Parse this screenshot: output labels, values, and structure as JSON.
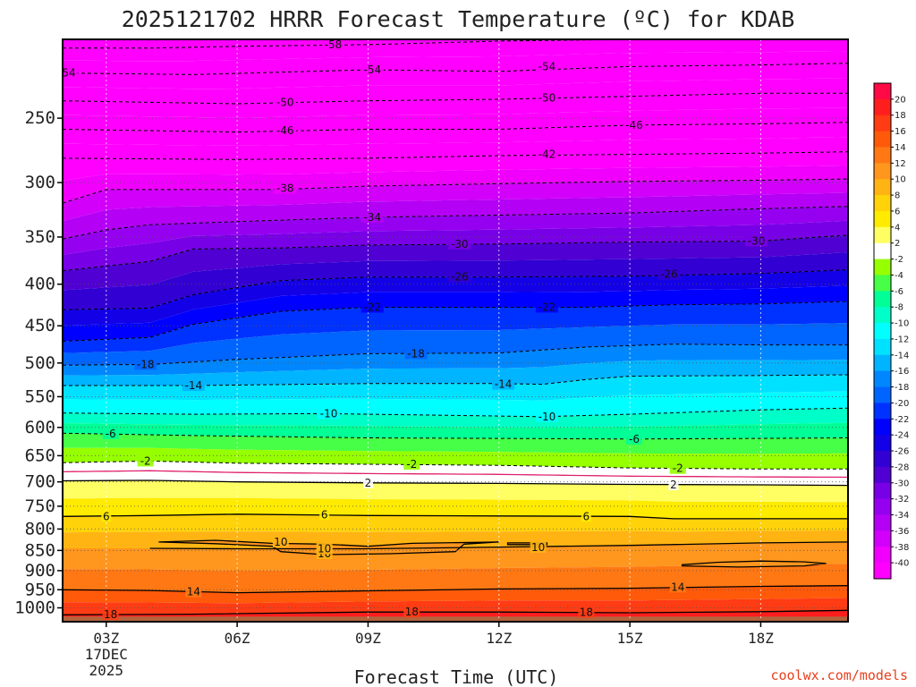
{
  "title": "2025121702 HRRR Forecast Temperature (ºC) for KDAB",
  "credit": "coolwx.com/models",
  "chart_data": {
    "type": "heatmap",
    "title": "2025121702 HRRR Forecast Temperature (ºC) for KDAB",
    "xlabel": "Forecast Time (UTC)",
    "ylabel": "",
    "x_range_hours_utc": [
      2,
      20
    ],
    "x_ticks": [
      {
        "hour": 3,
        "label": "03Z",
        "date_lines": [
          "17DEC",
          "2025"
        ]
      },
      {
        "hour": 6,
        "label": "06Z"
      },
      {
        "hour": 9,
        "label": "09Z"
      },
      {
        "hour": 12,
        "label": "12Z"
      },
      {
        "hour": 15,
        "label": "15Z"
      },
      {
        "hour": 18,
        "label": "18Z"
      }
    ],
    "y_axis": {
      "quantity": "pressure (hPa)",
      "scale": "log",
      "reversed": true,
      "range": [
        1040,
        200
      ]
    },
    "y_ticks": [
      250,
      300,
      350,
      400,
      450,
      500,
      550,
      600,
      650,
      700,
      750,
      800,
      850,
      900,
      950,
      1000
    ],
    "grid": true,
    "colorbar": {
      "ticks": [
        "20",
        "18",
        "16",
        "14",
        "12",
        "10",
        "8",
        "6",
        "4",
        "2",
        "-2",
        "-4",
        "-6",
        "-8",
        "-10",
        "-12",
        "-14",
        "-16",
        "-18",
        "-20",
        "-22",
        "-24",
        "-26",
        "-28",
        "-30",
        "-32",
        "-34",
        "-36",
        "-38",
        "-40"
      ],
      "colors": [
        "#ff0a46",
        "#ff1e1e",
        "#ff3c14",
        "#ff5a0a",
        "#ff7814",
        "#ff961e",
        "#ffb414",
        "#ffd20a",
        "#ffeb00",
        "#ffff64",
        "#ffffff",
        "#96ff00",
        "#46ff46",
        "#00ff96",
        "#00ffc8",
        "#00ffff",
        "#00e1ff",
        "#00b4ff",
        "#0087ff",
        "#0064ff",
        "#0032ff",
        "#0000ff",
        "#1400e6",
        "#3200d2",
        "#5000d2",
        "#7800e6",
        "#9600f0",
        "#b400f5",
        "#d200fa",
        "#f000fc",
        "#ff00ff"
      ],
      "position": "right"
    },
    "contour_interval_c": 4,
    "isotherms": [
      {
        "temp": -58,
        "points": [
          [
            2,
            205
          ],
          [
            4,
            205
          ],
          [
            6,
            204
          ],
          [
            9,
            203
          ],
          [
            12,
            201
          ],
          [
            15,
            200
          ],
          [
            20,
            200
          ]
        ]
      },
      {
        "temp": -54,
        "points": [
          [
            2,
            220
          ],
          [
            5,
            221
          ],
          [
            9,
            218
          ],
          [
            12,
            219
          ],
          [
            15,
            216
          ],
          [
            18,
            215
          ],
          [
            20,
            214
          ]
        ]
      },
      {
        "temp": -50,
        "points": [
          [
            2,
            238
          ],
          [
            6,
            240
          ],
          [
            9,
            238
          ],
          [
            12,
            237
          ],
          [
            15,
            235
          ],
          [
            18,
            233
          ],
          [
            20,
            233
          ]
        ]
      },
      {
        "temp": -46,
        "points": [
          [
            2,
            258
          ],
          [
            6,
            260
          ],
          [
            9,
            258
          ],
          [
            12,
            258
          ],
          [
            15,
            255
          ],
          [
            18,
            254
          ],
          [
            20,
            253
          ]
        ]
      },
      {
        "temp": -42,
        "points": [
          [
            2,
            280
          ],
          [
            6,
            281
          ],
          [
            9,
            280
          ],
          [
            12,
            278
          ],
          [
            15,
            277
          ],
          [
            18,
            276
          ],
          [
            20,
            275
          ]
        ]
      },
      {
        "temp": -38,
        "points": [
          [
            2,
            318
          ],
          [
            3,
            306
          ],
          [
            5,
            306
          ],
          [
            7,
            306
          ],
          [
            9,
            303
          ],
          [
            12,
            301
          ],
          [
            15,
            299
          ],
          [
            18,
            298
          ],
          [
            20,
            297
          ]
        ]
      },
      {
        "temp": -34,
        "points": [
          [
            2,
            352
          ],
          [
            3,
            343
          ],
          [
            4,
            338
          ],
          [
            6,
            335
          ],
          [
            9,
            331
          ],
          [
            12,
            329
          ],
          [
            15,
            327
          ],
          [
            18,
            323
          ],
          [
            20,
            321
          ]
        ]
      },
      {
        "temp": -30,
        "points": [
          [
            2,
            385
          ],
          [
            3,
            380
          ],
          [
            4,
            375
          ],
          [
            5,
            362
          ],
          [
            7,
            361
          ],
          [
            9,
            358
          ],
          [
            12,
            357
          ],
          [
            15,
            355
          ],
          [
            18,
            354
          ],
          [
            20,
            348
          ]
        ]
      },
      {
        "temp": -26,
        "points": [
          [
            2,
            430
          ],
          [
            4,
            428
          ],
          [
            5,
            412
          ],
          [
            7,
            396
          ],
          [
            9,
            392
          ],
          [
            12,
            392
          ],
          [
            15,
            391
          ],
          [
            18,
            388
          ],
          [
            20,
            384
          ]
        ]
      },
      {
        "temp": -22,
        "points": [
          [
            2,
            470
          ],
          [
            4,
            465
          ],
          [
            5,
            448
          ],
          [
            7,
            432
          ],
          [
            9,
            427
          ],
          [
            12,
            427
          ],
          [
            14,
            427
          ],
          [
            16,
            424
          ],
          [
            18,
            423
          ],
          [
            20,
            420
          ]
        ]
      },
      {
        "temp": -18,
        "points": [
          [
            2,
            503
          ],
          [
            4,
            502
          ],
          [
            6,
            495
          ],
          [
            9,
            487
          ],
          [
            12,
            486
          ],
          [
            14,
            478
          ],
          [
            16,
            474
          ],
          [
            18,
            475
          ],
          [
            20,
            475
          ]
        ]
      },
      {
        "temp": -14,
        "points": [
          [
            2,
            533
          ],
          [
            5,
            533
          ],
          [
            9,
            530
          ],
          [
            12,
            530
          ],
          [
            13,
            531
          ],
          [
            14,
            524
          ],
          [
            15,
            519
          ],
          [
            18,
            518
          ],
          [
            20,
            517
          ]
        ]
      },
      {
        "temp": -10,
        "points": [
          [
            2,
            576
          ],
          [
            5,
            578
          ],
          [
            8,
            577
          ],
          [
            11,
            580
          ],
          [
            13,
            582
          ],
          [
            15,
            578
          ],
          [
            18,
            571
          ],
          [
            20,
            568
          ]
        ]
      },
      {
        "temp": -6,
        "points": [
          [
            2,
            610
          ],
          [
            5,
            614
          ],
          [
            9,
            618
          ],
          [
            12,
            619
          ],
          [
            15,
            620
          ],
          [
            18,
            619
          ],
          [
            20,
            618
          ]
        ]
      },
      {
        "temp": -2,
        "points": [
          [
            2,
            663
          ],
          [
            4,
            660
          ],
          [
            6,
            664
          ],
          [
            9,
            666
          ],
          [
            12,
            668
          ],
          [
            15,
            673
          ],
          [
            18,
            675
          ],
          [
            20,
            675
          ]
        ]
      },
      {
        "temp": 2,
        "points": [
          [
            2,
            698
          ],
          [
            4,
            697
          ],
          [
            6,
            700
          ],
          [
            9,
            702
          ],
          [
            12,
            703
          ],
          [
            15,
            705
          ],
          [
            18,
            706
          ],
          [
            20,
            707
          ]
        ]
      },
      {
        "temp": 6,
        "points": [
          [
            2,
            772
          ],
          [
            4,
            770
          ],
          [
            6,
            767
          ],
          [
            9,
            770
          ],
          [
            12,
            771
          ],
          [
            15,
            772
          ],
          [
            16,
            777
          ],
          [
            18,
            777
          ],
          [
            20,
            777
          ]
        ]
      },
      {
        "temp": 10,
        "points": [
          [
            4,
            845
          ],
          [
            6,
            846
          ],
          [
            9,
            846
          ],
          [
            12,
            842
          ],
          [
            15,
            838
          ],
          [
            18,
            832
          ],
          [
            20,
            830
          ]
        ]
      },
      {
        "temp": 14,
        "points": [
          [
            2,
            950
          ],
          [
            4,
            952
          ],
          [
            6,
            958
          ],
          [
            9,
            953
          ],
          [
            12,
            948
          ],
          [
            15,
            946
          ],
          [
            18,
            941
          ],
          [
            20,
            939
          ]
        ]
      },
      {
        "temp": 18,
        "points": [
          [
            2,
            1020
          ],
          [
            5,
            1018
          ],
          [
            9,
            1012
          ],
          [
            12,
            1012
          ],
          [
            15,
            1014
          ],
          [
            18,
            1011
          ],
          [
            20,
            1007
          ]
        ]
      }
    ],
    "closed_contours": [
      {
        "temp": 10,
        "points": [
          [
            4.2,
            830
          ],
          [
            5.5,
            826
          ],
          [
            6.8,
            833
          ],
          [
            8,
            835
          ],
          [
            9,
            840
          ],
          [
            10,
            833
          ],
          [
            12,
            830
          ],
          [
            11.2,
            835
          ],
          [
            11,
            853
          ],
          [
            9.5,
            858
          ],
          [
            8,
            860
          ],
          [
            7,
            853
          ],
          [
            6.8,
            840
          ],
          [
            5.5,
            834
          ],
          [
            4.2,
            830
          ]
        ]
      },
      {
        "temp": 10,
        "points": [
          [
            12.2,
            832
          ],
          [
            13.1,
            832
          ],
          [
            13.1,
            836
          ],
          [
            12.2,
            836
          ],
          [
            12.2,
            832
          ]
        ]
      },
      {
        "temp": 10,
        "points": [
          [
            16.2,
            885
          ],
          [
            17,
            879
          ],
          [
            18,
            876
          ],
          [
            19,
            878
          ],
          [
            19.5,
            882
          ],
          [
            19,
            888
          ],
          [
            17.5,
            891
          ],
          [
            16.2,
            888
          ],
          [
            16.2,
            885
          ]
        ]
      }
    ],
    "contour_labels": [
      {
        "text": "-58",
        "x": 8.2,
        "p": 203
      },
      {
        "text": "-54",
        "x": 2.1,
        "p": 220
      },
      {
        "text": "-54",
        "x": 9.1,
        "p": 218
      },
      {
        "text": "-54",
        "x": 13.1,
        "p": 216
      },
      {
        "text": "-50",
        "x": 7.1,
        "p": 239
      },
      {
        "text": "-50",
        "x": 13.1,
        "p": 236
      },
      {
        "text": "-46",
        "x": 7.1,
        "p": 259
      },
      {
        "text": "-46",
        "x": 15.1,
        "p": 255
      },
      {
        "text": "-42",
        "x": 13.1,
        "p": 277
      },
      {
        "text": "-38",
        "x": 7.1,
        "p": 305
      },
      {
        "text": "-34",
        "x": 9.1,
        "p": 331
      },
      {
        "text": "-30",
        "x": 11.1,
        "p": 357
      },
      {
        "text": "-30",
        "x": 17.9,
        "p": 354
      },
      {
        "text": "-26",
        "x": 11.1,
        "p": 392
      },
      {
        "text": "-26",
        "x": 15.9,
        "p": 389
      },
      {
        "text": "-22",
        "x": 9.1,
        "p": 427
      },
      {
        "text": "-22",
        "x": 13.1,
        "p": 427
      },
      {
        "text": "-18",
        "x": 3.9,
        "p": 502
      },
      {
        "text": "-18",
        "x": 10.1,
        "p": 487
      },
      {
        "text": "-14",
        "x": 5.0,
        "p": 533
      },
      {
        "text": "-14",
        "x": 12.1,
        "p": 531
      },
      {
        "text": "-10",
        "x": 8.1,
        "p": 577
      },
      {
        "text": "-10",
        "x": 13.1,
        "p": 582
      },
      {
        "text": "-6",
        "x": 3.1,
        "p": 611
      },
      {
        "text": "-6",
        "x": 15.1,
        "p": 620
      },
      {
        "text": "-2",
        "x": 3.9,
        "p": 660
      },
      {
        "text": "-2",
        "x": 10.0,
        "p": 666
      },
      {
        "text": "-2",
        "x": 16.1,
        "p": 674
      },
      {
        "text": "2",
        "x": 9.0,
        "p": 702
      },
      {
        "text": "2",
        "x": 16.0,
        "p": 706
      },
      {
        "text": "6",
        "x": 3.0,
        "p": 772
      },
      {
        "text": "6",
        "x": 8.0,
        "p": 768
      },
      {
        "text": "6",
        "x": 14.0,
        "p": 772
      },
      {
        "text": "10",
        "x": 7.0,
        "p": 830
      },
      {
        "text": "10",
        "x": 8.0,
        "p": 858
      },
      {
        "text": "10",
        "x": 8.0,
        "p": 846
      },
      {
        "text": "10",
        "x": 12.9,
        "p": 843
      },
      {
        "text": "14",
        "x": 5.0,
        "p": 956
      },
      {
        "text": "14",
        "x": 16.1,
        "p": 943
      },
      {
        "text": "18",
        "x": 3.1,
        "p": 1019
      },
      {
        "text": "18",
        "x": 10.0,
        "p": 1012
      },
      {
        "text": "18",
        "x": 14.0,
        "p": 1013
      }
    ],
    "surface_band_color": "#b4643c"
  }
}
